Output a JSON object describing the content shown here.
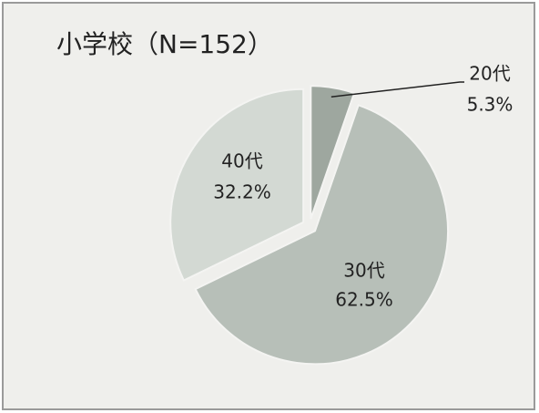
{
  "chart_data": {
    "type": "pie",
    "title": "小学校（N=152）",
    "categories": [
      "20代",
      "30代",
      "40代"
    ],
    "values": [
      5.3,
      62.5,
      32.2
    ],
    "value_labels": [
      "5.3%",
      "62.5%",
      "32.2%"
    ],
    "colors": [
      "#9ea79f",
      "#b7bfb8",
      "#d3d9d3"
    ]
  }
}
